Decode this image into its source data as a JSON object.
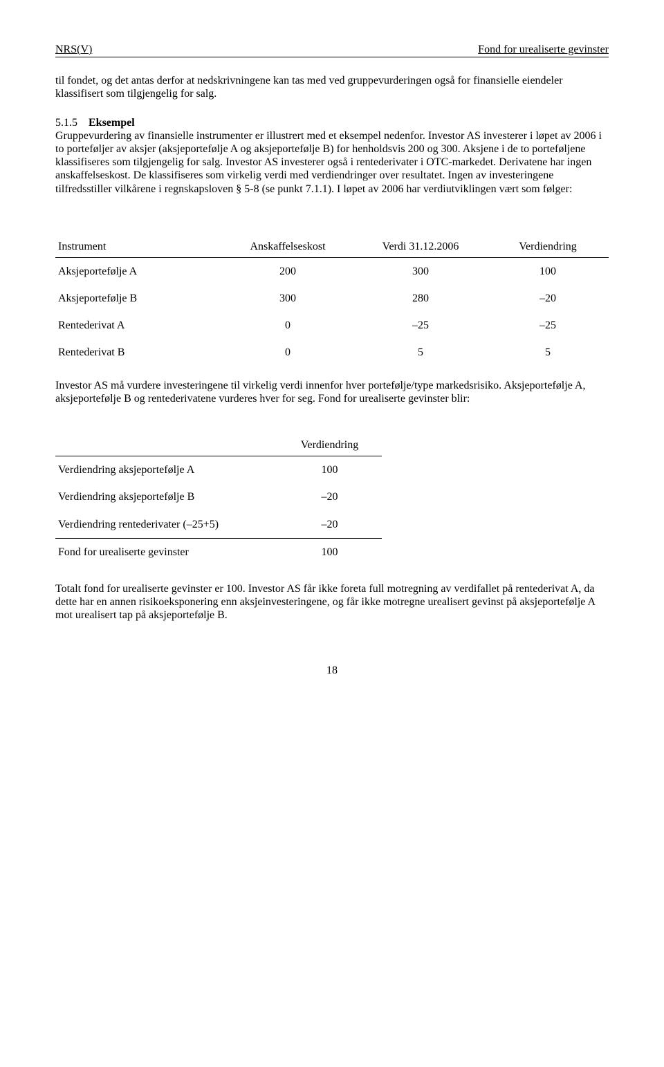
{
  "header": {
    "left": "NRS(V)",
    "right": "Fond for urealiserte gevinster"
  },
  "para1": "til fondet, og det antas derfor at nedskrivningene kan tas med ved gruppevurderingen også for finansielle eiendeler klassifisert som tilgjengelig for salg.",
  "section": {
    "num": "5.1.5",
    "title": "Eksempel"
  },
  "para2": "Gruppevurdering av finansielle instrumenter er illustrert med et eksempel nedenfor. Investor AS investerer i løpet av 2006 i to porteføljer av aksjer (aksjeportefølje A og aksjeportefølje B) for henholdsvis 200 og 300. Aksjene i de to porteføljene klassifiseres som tilgjengelig for salg. Investor AS investerer også i rentederivater i OTC-markedet. Derivatene har ingen anskaffelseskost. De klassifiseres som virkelig verdi med verdiendringer over resultatet. Ingen av investeringene tilfredsstiller vilkårene i regnskapsloven § 5-8 (se punkt 7.1.1). I løpet av 2006 har verdiutviklingen vært som følger:",
  "table1": {
    "headers": [
      "Instrument",
      "Anskaffelseskost",
      "Verdi 31.12.2006",
      "Verdiendring"
    ],
    "rows": [
      [
        "Aksjeportefølje A",
        "200",
        "300",
        "100"
      ],
      [
        "Aksjeportefølje B",
        "300",
        "280",
        "–20"
      ],
      [
        "Rentederivat A",
        "0",
        "–25",
        "–25"
      ],
      [
        "Rentederivat B",
        "0",
        "5",
        "5"
      ]
    ]
  },
  "para3": "Investor AS må vurdere investeringene til virkelig verdi innenfor hver portefølje/type markedsrisiko. Aksjeportefølje A, aksjeportefølje B og rentederivatene vurderes hver for seg. Fond for urealiserte gevinster blir:",
  "table2": {
    "header": "Verdiendring",
    "rows": [
      [
        "Verdiendring aksjeportefølje A",
        "100"
      ],
      [
        "Verdiendring aksjeportefølje B",
        "–20"
      ],
      [
        "Verdiendring rentederivater (–25+5)",
        "–20"
      ]
    ],
    "total": [
      "Fond for urealiserte gevinster",
      "100"
    ]
  },
  "para4": "Totalt fond for urealiserte gevinster er 100. Investor AS får ikke foreta full motregning av verdifallet på rentederivat A, da dette har en annen risikoeksponering enn aksjeinvesteringene, og får ikke motregne urealisert gevinst på aksjeportefølje A mot urealisert tap på aksjeportefølje B.",
  "pageNumber": "18"
}
